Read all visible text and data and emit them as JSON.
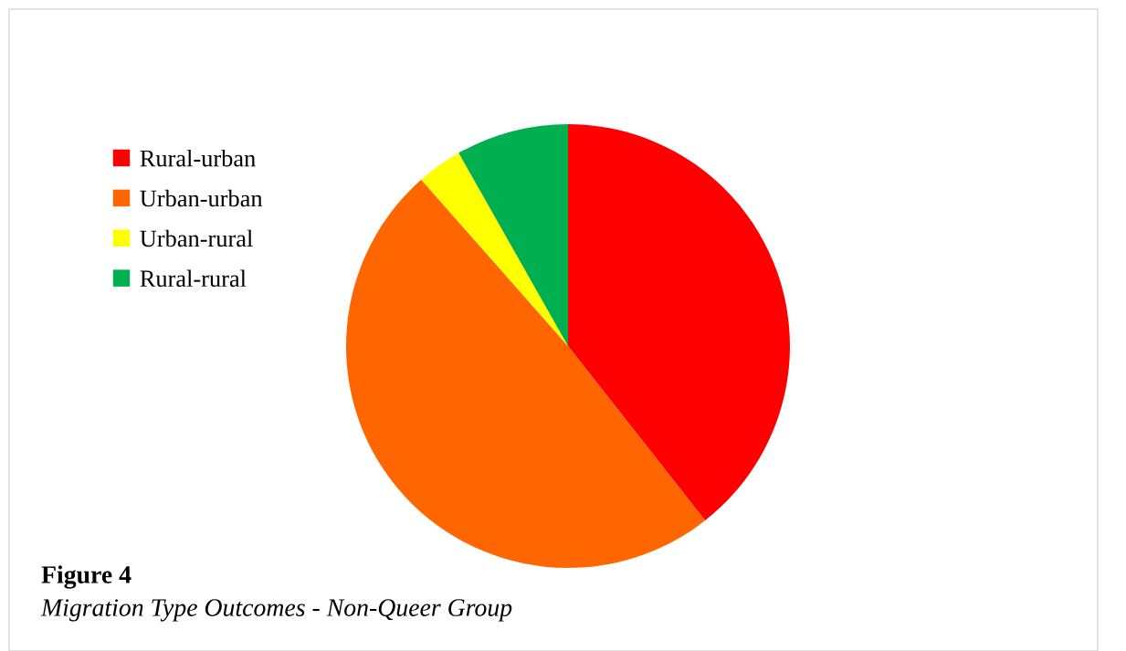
{
  "chart_data": {
    "type": "pie",
    "title": "Figure 4",
    "subtitle": "Migration Type Outcomes - Non-Queer Group",
    "categories": [
      "Rural-urban",
      "Urban-urban",
      "Urban-rural",
      "Rural-rural"
    ],
    "values": [
      39.4,
      49.1,
      3.3,
      8.2
    ],
    "colors": [
      "#ff0000",
      "#ff6600",
      "#ffff00",
      "#00b050"
    ],
    "legend": "left"
  }
}
